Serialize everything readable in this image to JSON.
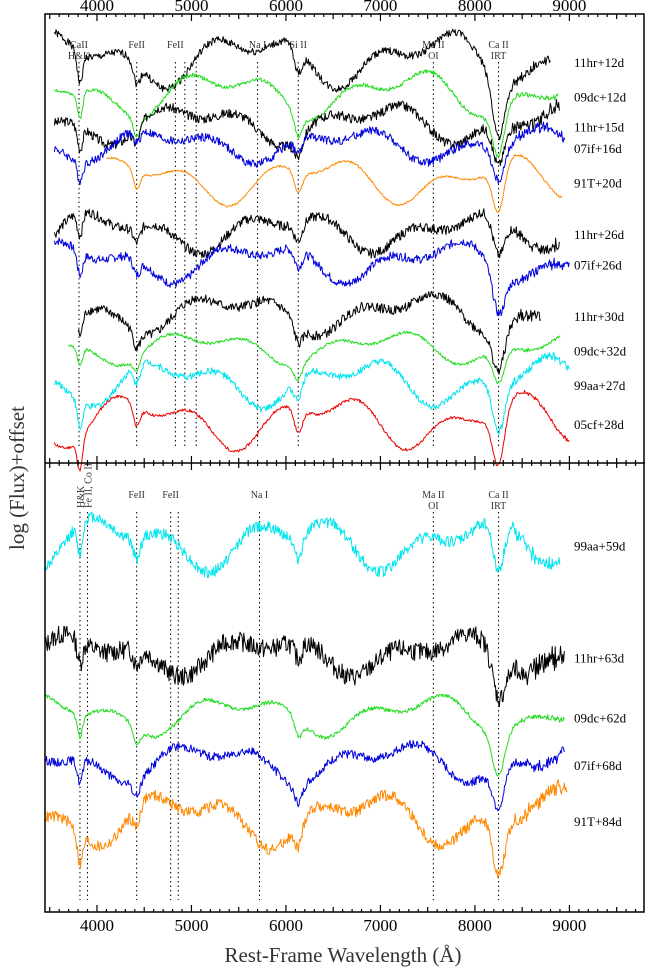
{
  "chart_data": {
    "type": "line",
    "xlabel": "Rest-Frame Wavelength (Å)",
    "ylabel": "log (Flux)+offset",
    "xlim": [
      3450,
      9800
    ],
    "xticks": [
      4000,
      5000,
      6000,
      7000,
      8000,
      9000
    ],
    "panels": [
      {
        "id": "top",
        "yrange": [
          0,
          100
        ],
        "lines": [
          {
            "label": "CaII H&K",
            "x": 3810
          },
          {
            "label": "FeII",
            "x": 4420
          },
          {
            "label": "FeII",
            "x": 4830
          },
          {
            "label": "",
            "x": 4930
          },
          {
            "label": "",
            "x": 5050
          },
          {
            "label": "Na I",
            "x": 5700
          },
          {
            "label": "Si II",
            "x": 6130
          },
          {
            "label": "Ma II OI",
            "x": 7560
          },
          {
            "label": "Ca II IRT",
            "x": 8250
          }
        ],
        "series": [
          {
            "name": "11hr+12d",
            "color": "#000000",
            "x0": 3550,
            "x1": 8800,
            "level": 92,
            "amp": 8,
            "noise": 0.8,
            "seed": 1
          },
          {
            "name": "09dc+12d",
            "color": "#22dd22",
            "x0": 3550,
            "x1": 8880,
            "level": 84,
            "amp": 7,
            "noise": 0.4,
            "seed": 2
          },
          {
            "name": "11hr+15d",
            "color": "#000000",
            "x0": 3550,
            "x1": 8900,
            "level": 77,
            "amp": 6,
            "noise": 1.0,
            "seed": 3
          },
          {
            "name": "07if+16d",
            "color": "#0000dd",
            "x0": 3550,
            "x1": 8950,
            "level": 72,
            "amp": 5,
            "noise": 0.9,
            "seed": 4
          },
          {
            "name": "91T+20d",
            "color": "#ff8800",
            "x0": 4100,
            "x1": 8930,
            "level": 64,
            "amp": 7,
            "noise": 0.2,
            "seed": 5
          },
          {
            "name": "11hr+26d",
            "color": "#000000",
            "x0": 3550,
            "x1": 8900,
            "level": 52,
            "amp": 6,
            "noise": 1.0,
            "seed": 6
          },
          {
            "name": "07if+26d",
            "color": "#0000dd",
            "x0": 3550,
            "x1": 9000,
            "level": 45,
            "amp": 6,
            "noise": 0.9,
            "seed": 7
          },
          {
            "name": "11hr+30d",
            "color": "#000000",
            "x0": 3800,
            "x1": 8700,
            "level": 33,
            "amp": 6,
            "noise": 1.0,
            "seed": 8
          },
          {
            "name": "09dc+32d",
            "color": "#22dd22",
            "x0": 3700,
            "x1": 8900,
            "level": 25,
            "amp": 5,
            "noise": 0.3,
            "seed": 9
          },
          {
            "name": "99aa+27d",
            "color": "#00e5ee",
            "x0": 3550,
            "x1": 9000,
            "level": 17,
            "amp": 7,
            "noise": 0.7,
            "seed": 10
          },
          {
            "name": "05cf+28d",
            "color": "#ee0000",
            "x0": 3550,
            "x1": 9000,
            "level": 8,
            "amp": 8,
            "noise": 0.3,
            "seed": 11
          }
        ]
      },
      {
        "id": "bottom",
        "yrange": [
          0,
          100
        ],
        "lines": [
          {
            "label": "H&K",
            "x": 3820
          },
          {
            "label": "Fe II, Co II",
            "x": 3900
          },
          {
            "label": "FeII",
            "x": 4420
          },
          {
            "label": "FeII",
            "x": 4780
          },
          {
            "label": "",
            "x": 4860
          },
          {
            "label": "Na I",
            "x": 5720
          },
          {
            "label": "Ma II OI",
            "x": 7560
          },
          {
            "label": "Ca II IRT",
            "x": 8250
          }
        ],
        "series": [
          {
            "name": "99aa+59d",
            "color": "#00e5ee",
            "x0": 3450,
            "x1": 8900,
            "level": 84,
            "amp": 8,
            "noise": 1.2,
            "seed": 12
          },
          {
            "name": "11hr+63d",
            "color": "#000000",
            "x0": 3450,
            "x1": 8950,
            "level": 58,
            "amp": 6,
            "noise": 2.0,
            "seed": 13
          },
          {
            "name": "09dc+62d",
            "color": "#22dd22",
            "x0": 3450,
            "x1": 8950,
            "level": 44,
            "amp": 6,
            "noise": 0.4,
            "seed": 14
          },
          {
            "name": "07if+68d",
            "color": "#0000dd",
            "x0": 3450,
            "x1": 8950,
            "level": 33,
            "amp": 6,
            "noise": 0.9,
            "seed": 15
          },
          {
            "name": "91T+84d",
            "color": "#ff8800",
            "x0": 3450,
            "x1": 8980,
            "level": 20,
            "amp": 8,
            "noise": 1.2,
            "seed": 16
          }
        ]
      }
    ]
  }
}
